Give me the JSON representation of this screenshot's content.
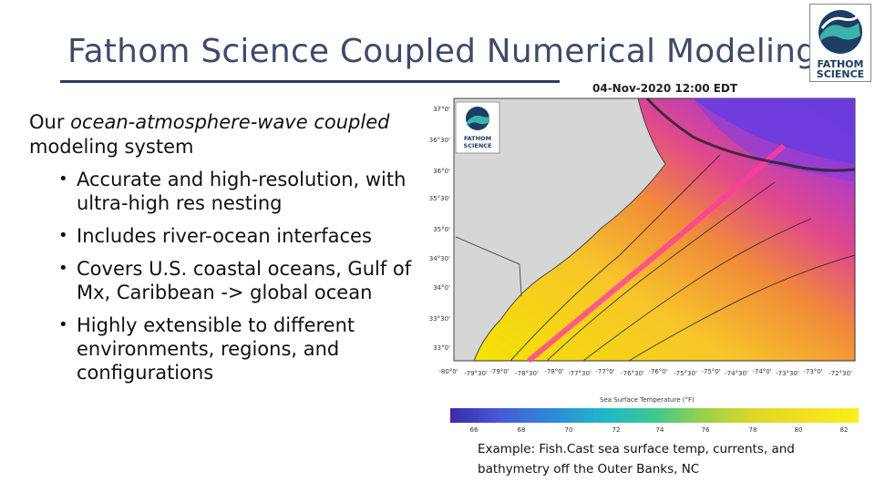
{
  "slide": {
    "title": "Fathom Science Coupled Numerical Modeling",
    "intro_plain_1": "Our ",
    "intro_italic": "ocean-atmosphere-wave coupled",
    "intro_plain_2": " modeling system",
    "bullets": [
      "Accurate and high-resolution, with ultra-high res nesting",
      "Includes river-ocean interfaces",
      "Covers U.S. coastal oceans, Gulf of Mx, Caribbean -> global ocean",
      "Highly extensible to different environments, regions, and configurations"
    ],
    "caption": "Example: Fish.Cast sea surface temp, currents, and bathymetry off the Outer Banks, NC"
  },
  "logo": {
    "line1": "FATHOM",
    "line2": "SCIENCE",
    "color": "#1d3d64",
    "accent": "#3bb3a8"
  },
  "map": {
    "timestamp": "04-Nov-2020 12:00 EDT",
    "lat_labels": [
      "37°0'",
      "36°30'",
      "36°0'",
      "35°30'",
      "35°0'",
      "34°30'",
      "34°0'",
      "33°30'",
      "33°0'"
    ],
    "lon_labels": [
      "-80°0'",
      "-79°30'",
      "-79°0'",
      "-78°30'",
      "-78°0'",
      "-77°30'",
      "-77°0'",
      "-76°30'",
      "-76°0'",
      "-75°30'",
      "-75°0'",
      "-74°30'",
      "-74°0'",
      "-73°30'",
      "-73°0'",
      "-72°30'"
    ],
    "colorbar_title": "Sea Surface Temperature (°F)",
    "colorbar_ticks": [
      "66",
      "68",
      "70",
      "72",
      "74",
      "76",
      "78",
      "80",
      "82"
    ]
  }
}
